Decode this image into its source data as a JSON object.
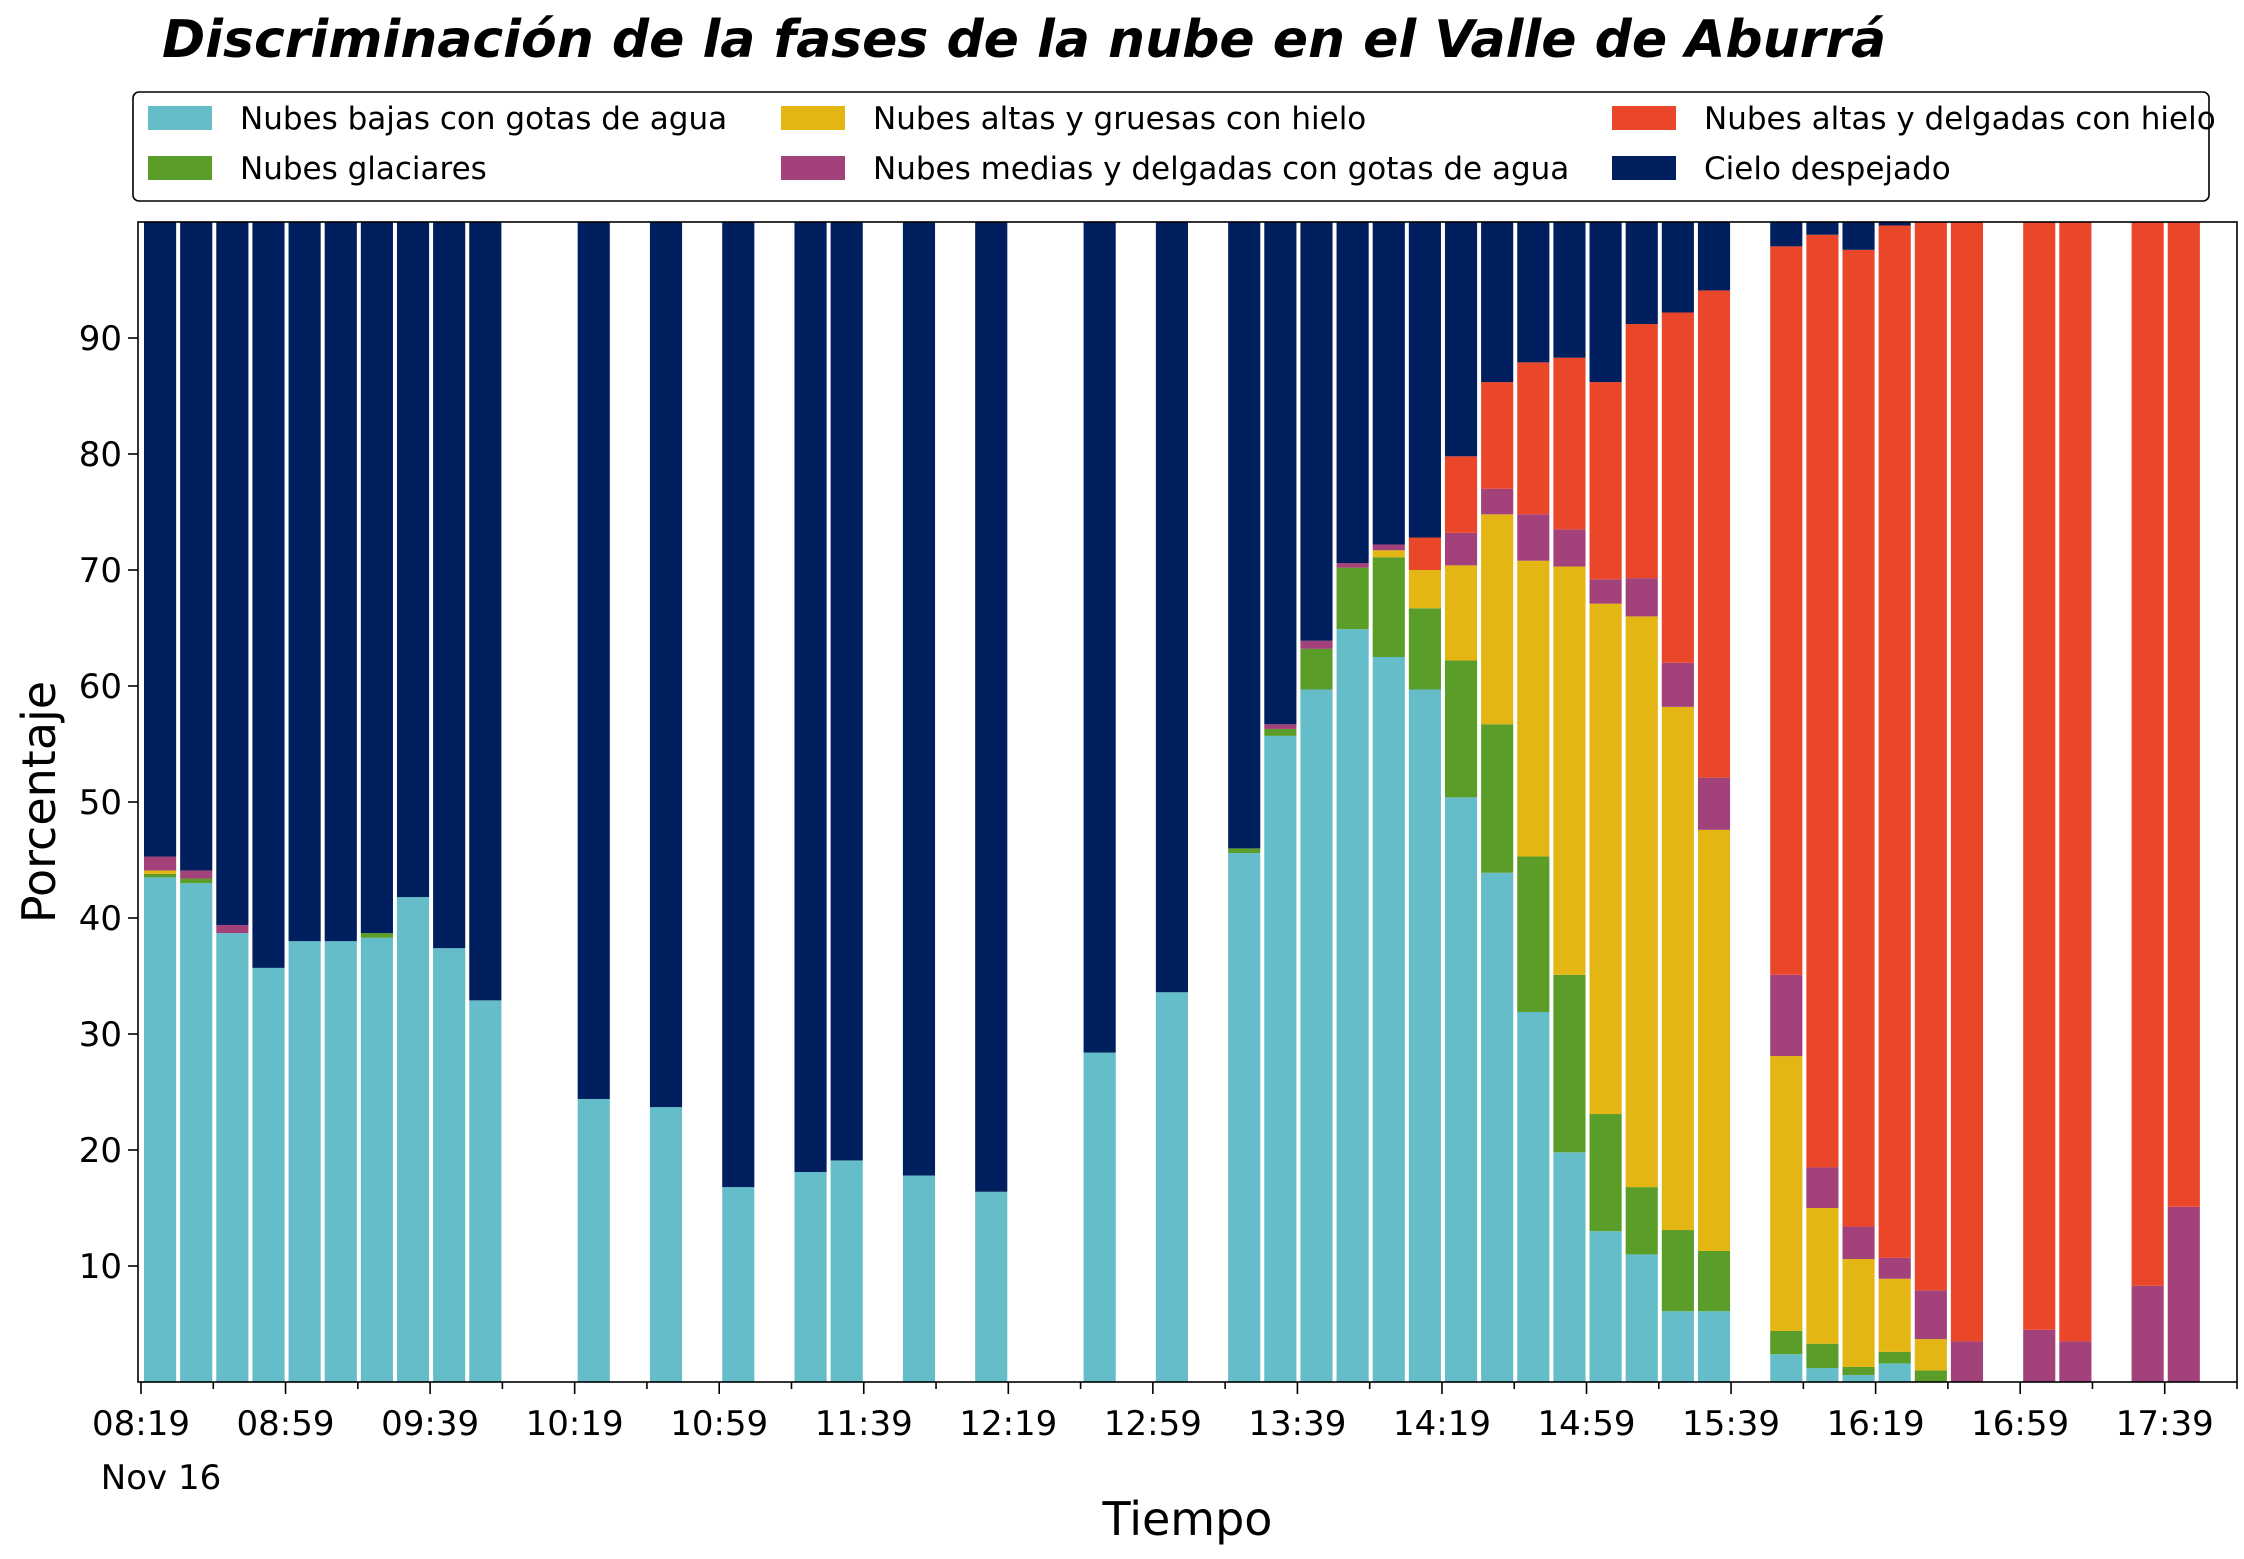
{
  "chart_data": {
    "type": "bar",
    "stacked": true,
    "title": "Discriminación de la fases de la nube en el Valle de Aburrá",
    "xlabel": "Tiempo",
    "ylabel": "Porcentaje",
    "ylim": [
      0,
      100
    ],
    "yticks": [
      10,
      20,
      30,
      40,
      50,
      60,
      70,
      80,
      90
    ],
    "xtick_labels": [
      "08:19",
      "08:59",
      "09:39",
      "10:19",
      "10:59",
      "11:39",
      "12:19",
      "12:59",
      "13:39",
      "14:19",
      "14:59",
      "15:39",
      "16:19",
      "16:59",
      "17:39"
    ],
    "xtick_sublabel": "Nov 16",
    "time_start": "08:19",
    "time_end": "17:59",
    "bar_interval_min": 10,
    "grid": false,
    "legend_position": "top",
    "series": [
      {
        "name": "Nubes bajas con gotas de agua",
        "color": "#64bdc8",
        "values": [
          43.5,
          43.0,
          38.7,
          35.7,
          38.0,
          38.0,
          38.3,
          41.8,
          37.4,
          32.9,
          null,
          null,
          24.4,
          null,
          23.7,
          null,
          16.8,
          null,
          18.1,
          19.1,
          null,
          17.8,
          null,
          16.4,
          null,
          null,
          28.4,
          null,
          33.6,
          null,
          45.6,
          55.7,
          59.7,
          64.9,
          62.5,
          59.7,
          50.4,
          43.9,
          31.9,
          19.8,
          13.0,
          11.0,
          6.1,
          6.1,
          null,
          2.4,
          1.2,
          0.6,
          1.6,
          0,
          0,
          null,
          0,
          0,
          null,
          0,
          0,
          null
        ]
      },
      {
        "name": "Nubes glaciares",
        "color": "#5a9e29",
        "values": [
          0.3,
          0.4,
          0,
          0,
          0,
          0,
          0.4,
          0,
          0,
          0,
          null,
          null,
          0,
          null,
          0,
          null,
          0,
          null,
          0,
          0,
          null,
          0,
          null,
          0,
          null,
          null,
          0,
          null,
          0,
          null,
          0.4,
          0.6,
          3.5,
          5.3,
          8.6,
          7.0,
          11.8,
          12.8,
          13.4,
          15.3,
          10.1,
          5.8,
          7.0,
          5.2,
          null,
          2.0,
          2.1,
          0.7,
          1.0,
          1.0,
          0,
          null,
          0,
          0,
          null,
          0,
          0,
          null
        ]
      },
      {
        "name": "Nubes altas y gruesas con hielo",
        "color": "#e3b614",
        "values": [
          0.3,
          0,
          0,
          0,
          0,
          0,
          0,
          0,
          0,
          0,
          null,
          null,
          0,
          null,
          0,
          null,
          0,
          null,
          0,
          0,
          null,
          0,
          null,
          0,
          null,
          null,
          0,
          null,
          0,
          null,
          0,
          0,
          0,
          0,
          0.6,
          3.3,
          8.2,
          18.1,
          25.5,
          35.2,
          44.0,
          49.2,
          45.1,
          36.3,
          null,
          23.7,
          11.7,
          9.3,
          6.3,
          2.7,
          0,
          null,
          0,
          0,
          null,
          0,
          0,
          null
        ]
      },
      {
        "name": "Nubes medias y delgadas con gotas de agua",
        "color": "#a3427a",
        "values": [
          1.2,
          0.7,
          0.7,
          0,
          0,
          0,
          0,
          0,
          0,
          0,
          null,
          null,
          0,
          null,
          0,
          null,
          0,
          null,
          0,
          0,
          null,
          0,
          null,
          0,
          null,
          null,
          0,
          null,
          0,
          null,
          0,
          0.4,
          0.7,
          0.4,
          0.5,
          0,
          2.8,
          2.2,
          4.0,
          3.2,
          2.1,
          3.3,
          3.8,
          4.5,
          null,
          7.0,
          3.5,
          2.8,
          1.8,
          4.2,
          3.5,
          null,
          4.5,
          3.5,
          null,
          8.3,
          15.1,
          null
        ]
      },
      {
        "name": "Nubes altas y delgadas con hielo",
        "color": "#ea472a",
        "values": [
          0,
          0,
          0,
          0,
          0,
          0,
          0,
          0,
          0,
          0,
          null,
          null,
          0,
          null,
          0,
          null,
          0,
          null,
          0,
          0,
          null,
          0,
          null,
          0,
          null,
          null,
          0,
          null,
          0,
          null,
          0,
          0,
          0,
          0,
          0,
          2.8,
          6.6,
          9.2,
          13.1,
          14.8,
          17.0,
          21.9,
          30.2,
          42.0,
          null,
          62.8,
          80.4,
          84.2,
          89.0,
          92.1,
          96.5,
          null,
          95.5,
          96.5,
          null,
          91.7,
          84.9,
          null
        ]
      },
      {
        "name": "Cielo despejado",
        "color": "#001f5e",
        "values": [
          54.7,
          55.9,
          60.6,
          64.3,
          62.0,
          62.0,
          61.3,
          58.2,
          62.6,
          67.1,
          null,
          null,
          75.6,
          null,
          76.3,
          null,
          83.2,
          null,
          81.9,
          80.9,
          null,
          82.2,
          null,
          83.6,
          null,
          null,
          71.6,
          null,
          66.4,
          null,
          54.0,
          43.3,
          36.1,
          29.4,
          27.8,
          27.2,
          20.2,
          13.8,
          12.1,
          11.7,
          13.8,
          8.8,
          7.8,
          5.9,
          null,
          2.1,
          1.1,
          2.4,
          0.3,
          0,
          0,
          null,
          0,
          0,
          null,
          0,
          0,
          null
        ]
      }
    ]
  }
}
